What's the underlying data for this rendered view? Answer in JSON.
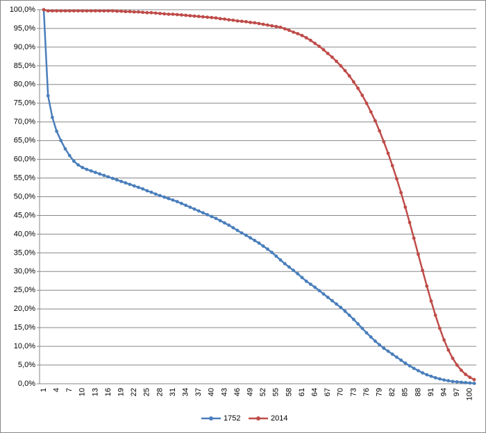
{
  "chart_data": {
    "type": "line",
    "categories": [
      "1",
      null,
      null,
      "4",
      null,
      null,
      "7",
      null,
      null,
      "10",
      null,
      null,
      "13",
      null,
      null,
      "16",
      null,
      null,
      "19",
      null,
      null,
      "22",
      null,
      null,
      "25",
      null,
      null,
      "28",
      null,
      null,
      "31",
      null,
      null,
      "34",
      null,
      null,
      "37",
      null,
      null,
      "40",
      null,
      null,
      "43",
      null,
      null,
      "46",
      null,
      null,
      "49",
      null,
      null,
      "52",
      null,
      null,
      "55",
      null,
      null,
      "58",
      null,
      null,
      "61",
      null,
      null,
      "64",
      null,
      null,
      "67",
      null,
      null,
      "70",
      null,
      null,
      "73",
      null,
      null,
      "76",
      null,
      null,
      "79",
      null,
      null,
      "82",
      null,
      null,
      "85",
      null,
      null,
      "88",
      null,
      null,
      "91",
      null,
      null,
      "94",
      null,
      null,
      "97",
      null,
      null,
      "100",
      null
    ],
    "series": [
      {
        "name": "1752",
        "color": "#4a7ebb",
        "values": [
          100,
          77,
          71.2,
          67.5,
          65,
          62.8,
          61,
          59.5,
          58.5,
          57.8,
          57.3,
          56.9,
          56.5,
          56.1,
          55.7,
          55.3,
          54.9,
          54.5,
          54.1,
          53.7,
          53.3,
          52.9,
          52.5,
          52.1,
          51.6,
          51.2,
          50.7,
          50.3,
          49.9,
          49.5,
          49.1,
          48.7,
          48.2,
          47.7,
          47.2,
          46.7,
          46.2,
          45.7,
          45.2,
          44.7,
          44.2,
          43.6,
          43.0,
          42.4,
          41.7,
          41.0,
          40.3,
          39.7,
          39.0,
          38.3,
          37.6,
          36.8,
          36.0,
          35.1,
          34.1,
          33.1,
          32.1,
          31.2,
          30.3,
          29.4,
          28.4,
          27.4,
          26.6,
          25.8,
          24.9,
          24.0,
          23.1,
          22.2,
          21.3,
          20.4,
          19.4,
          18.3,
          17.2,
          16.0,
          14.8,
          13.6,
          12.5,
          11.4,
          10.4,
          9.5,
          8.7,
          7.9,
          7.1,
          6.3,
          5.5,
          4.8,
          4.1,
          3.5,
          2.9,
          2.4,
          2.0,
          1.6,
          1.3,
          1.0,
          0.8,
          0.6,
          0.5,
          0.4,
          0.3,
          0.2,
          0.1
        ]
      },
      {
        "name": "2014",
        "color": "#be4b48",
        "values": [
          100,
          99.7,
          99.7,
          99.7,
          99.7,
          99.7,
          99.7,
          99.7,
          99.7,
          99.7,
          99.7,
          99.7,
          99.7,
          99.7,
          99.7,
          99.7,
          99.7,
          99.6,
          99.6,
          99.5,
          99.5,
          99.4,
          99.4,
          99.3,
          99.2,
          99.2,
          99.1,
          99.0,
          98.9,
          98.8,
          98.8,
          98.7,
          98.6,
          98.5,
          98.4,
          98.3,
          98.2,
          98.1,
          98.0,
          97.9,
          97.8,
          97.6,
          97.5,
          97.3,
          97.2,
          97.0,
          96.9,
          96.8,
          96.6,
          96.5,
          96.3,
          96.1,
          95.9,
          95.7,
          95.5,
          95.3,
          94.9,
          94.5,
          94.0,
          93.6,
          93.1,
          92.5,
          91.8,
          91.0,
          90.2,
          89.3,
          88.3,
          87.3,
          86.2,
          85.0,
          83.7,
          82.3,
          80.7,
          79.0,
          77.1,
          75.0,
          72.7,
          70.3,
          67.6,
          64.7,
          61.6,
          58.3,
          54.8,
          51.1,
          47.2,
          43.1,
          38.9,
          34.6,
          30.3,
          26.1,
          22.1,
          18.3,
          14.8,
          11.7,
          9.0,
          6.8,
          5.0,
          3.6,
          2.5,
          1.7,
          1.1
        ]
      }
    ],
    "ylim": [
      0,
      100
    ],
    "yticks": [
      {
        "value": 0,
        "label": "0,0%"
      },
      {
        "value": 5,
        "label": "5,0%"
      },
      {
        "value": 10,
        "label": "10,0%"
      },
      {
        "value": 15,
        "label": "15,0%"
      },
      {
        "value": 20,
        "label": "20,0%"
      },
      {
        "value": 25,
        "label": "25,0%"
      },
      {
        "value": 30,
        "label": "30,0%"
      },
      {
        "value": 35,
        "label": "35,0%"
      },
      {
        "value": 40,
        "label": "40,0%"
      },
      {
        "value": 45,
        "label": "45,0%"
      },
      {
        "value": 50,
        "label": "50,0%"
      },
      {
        "value": 55,
        "label": "55,0%"
      },
      {
        "value": 60,
        "label": "60,0%"
      },
      {
        "value": 65,
        "label": "65,0%"
      },
      {
        "value": 70,
        "label": "70,0%"
      },
      {
        "value": 75,
        "label": "75,0%"
      },
      {
        "value": 80,
        "label": "80,0%"
      },
      {
        "value": 85,
        "label": "85,0%"
      },
      {
        "value": 90,
        "label": "90,0%"
      },
      {
        "value": 95,
        "label": "95,0%"
      },
      {
        "value": 100,
        "label": "100,0%"
      }
    ],
    "grid": true,
    "legend": "bottom"
  }
}
